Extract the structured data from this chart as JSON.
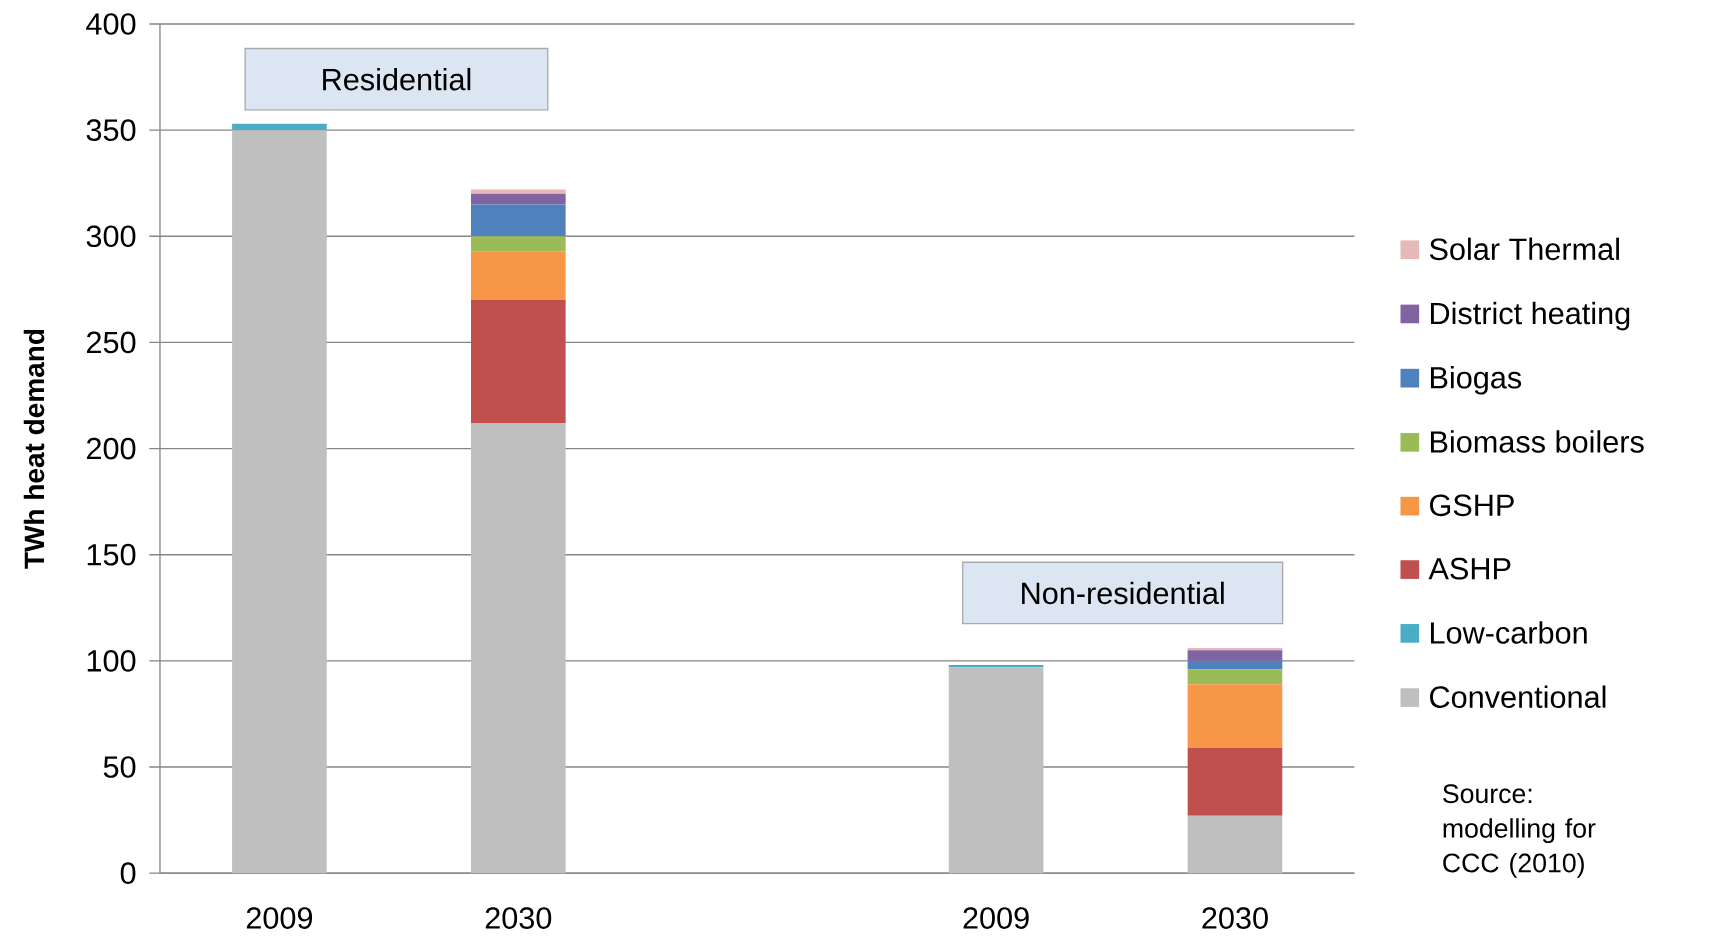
{
  "chart_data": {
    "type": "bar",
    "stacked": true,
    "ylabel": "TWh heat demand",
    "categories": [
      "2009",
      "2030",
      null,
      "2009",
      "2030"
    ],
    "series": [
      {
        "name": "Conventional",
        "color": "#bfbfbf",
        "values": [
          350,
          212,
          null,
          97,
          27
        ]
      },
      {
        "name": "Low-carbon",
        "color": "#4bacc6",
        "values": [
          3,
          0,
          null,
          1,
          0
        ]
      },
      {
        "name": "ASHP",
        "color": "#c0504d",
        "values": [
          0,
          58,
          null,
          0,
          32
        ]
      },
      {
        "name": "GSHP",
        "color": "#f79646",
        "values": [
          0,
          23,
          null,
          0,
          30
        ]
      },
      {
        "name": "Biomass boilers",
        "color": "#9bbb59",
        "values": [
          0,
          7,
          null,
          0,
          7
        ]
      },
      {
        "name": "Biogas",
        "color": "#4f81bd",
        "values": [
          0,
          15,
          null,
          0,
          4
        ]
      },
      {
        "name": "District heating",
        "color": "#8064a2",
        "values": [
          0,
          5,
          null,
          0,
          5
        ]
      },
      {
        "name": "Solar Thermal",
        "color": "#e6b9b8",
        "values": [
          0,
          2,
          null,
          0,
          1
        ]
      }
    ],
    "ylim": [
      0,
      400
    ],
    "yticks": [
      0,
      50,
      100,
      150,
      200,
      250,
      300,
      350,
      400
    ],
    "grid": "y",
    "legend": "right",
    "annotations": [
      "Residential",
      "Non-residential",
      "Source: modelling for CCC (2010)"
    ]
  }
}
